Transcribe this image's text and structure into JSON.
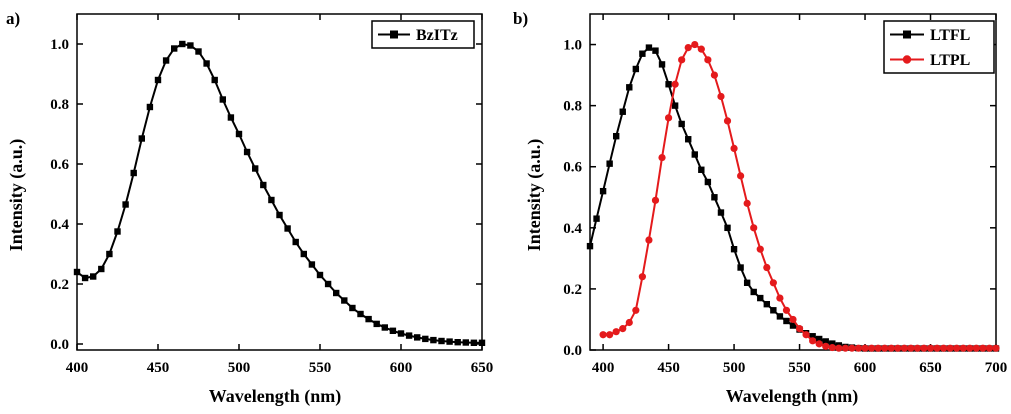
{
  "chart_data": [
    {
      "panel_label": "a)",
      "type": "line",
      "xlabel": "Wavelength (nm)",
      "ylabel": "Intensity (a.u.)",
      "xlim": [
        400,
        650
      ],
      "ylim": [
        -0.02,
        1.1
      ],
      "xticks": [
        400,
        450,
        500,
        550,
        600,
        650
      ],
      "yticks": [
        0.0,
        0.2,
        0.4,
        0.6,
        0.8,
        1.0
      ],
      "xtick_labels": [
        "400",
        "450",
        "500",
        "550",
        "600",
        "650"
      ],
      "ytick_labels": [
        "0.0",
        "0.2",
        "0.4",
        "0.6",
        "0.8",
        "1.0"
      ],
      "legend_position": "top-right",
      "grid": false,
      "series": [
        {
          "name": "BzITz",
          "color": "#000000",
          "marker": "square",
          "x": [
            400,
            405,
            410,
            415,
            420,
            425,
            430,
            435,
            440,
            445,
            450,
            455,
            460,
            465,
            470,
            475,
            480,
            485,
            490,
            495,
            500,
            505,
            510,
            515,
            520,
            525,
            530,
            535,
            540,
            545,
            550,
            555,
            560,
            565,
            570,
            575,
            580,
            585,
            590,
            595,
            600,
            605,
            610,
            615,
            620,
            625,
            630,
            635,
            640,
            645,
            650
          ],
          "y": [
            0.24,
            0.22,
            0.225,
            0.25,
            0.3,
            0.375,
            0.465,
            0.57,
            0.685,
            0.79,
            0.88,
            0.945,
            0.985,
            1.0,
            0.995,
            0.975,
            0.935,
            0.88,
            0.815,
            0.755,
            0.7,
            0.64,
            0.585,
            0.53,
            0.48,
            0.43,
            0.385,
            0.34,
            0.3,
            0.265,
            0.23,
            0.2,
            0.17,
            0.145,
            0.12,
            0.1,
            0.083,
            0.067,
            0.055,
            0.044,
            0.035,
            0.028,
            0.022,
            0.017,
            0.013,
            0.01,
            0.008,
            0.006,
            0.005,
            0.004,
            0.004
          ]
        }
      ]
    },
    {
      "panel_label": "b)",
      "type": "line",
      "xlabel": "Wavelength (nm)",
      "ylabel": "Intensity (a.u.)",
      "xlim": [
        390,
        700
      ],
      "ylim": [
        0.0,
        1.1
      ],
      "xticks": [
        400,
        450,
        500,
        550,
        600,
        650,
        700
      ],
      "yticks": [
        0.0,
        0.2,
        0.4,
        0.6,
        0.8,
        1.0
      ],
      "xtick_labels": [
        "400",
        "450",
        "500",
        "550",
        "600",
        "650",
        "700"
      ],
      "ytick_labels": [
        "0.0",
        "0.2",
        "0.4",
        "0.6",
        "0.8",
        "1.0"
      ],
      "legend_position": "top-right",
      "grid": false,
      "series": [
        {
          "name": "LTFL",
          "color": "#000000",
          "marker": "square",
          "x": [
            390,
            395,
            400,
            405,
            410,
            415,
            420,
            425,
            430,
            435,
            440,
            445,
            450,
            455,
            460,
            465,
            470,
            475,
            480,
            485,
            490,
            495,
            500,
            505,
            510,
            515,
            520,
            525,
            530,
            535,
            540,
            545,
            550,
            555,
            560,
            565,
            570,
            575,
            580,
            585,
            590,
            595,
            600,
            605,
            610,
            615,
            620,
            625,
            630,
            635,
            640,
            645,
            650,
            655,
            660,
            665,
            670,
            675,
            680,
            685,
            690,
            695,
            700
          ],
          "y": [
            0.34,
            0.43,
            0.52,
            0.61,
            0.7,
            0.78,
            0.86,
            0.92,
            0.97,
            0.99,
            0.98,
            0.935,
            0.87,
            0.8,
            0.74,
            0.69,
            0.64,
            0.59,
            0.55,
            0.5,
            0.45,
            0.4,
            0.33,
            0.27,
            0.22,
            0.19,
            0.17,
            0.15,
            0.13,
            0.11,
            0.095,
            0.08,
            0.067,
            0.055,
            0.045,
            0.036,
            0.028,
            0.021,
            0.015,
            0.01,
            0.008,
            0.006,
            0.005,
            0.005,
            0.005,
            0.005,
            0.005,
            0.005,
            0.005,
            0.005,
            0.005,
            0.005,
            0.005,
            0.005,
            0.005,
            0.005,
            0.005,
            0.005,
            0.005,
            0.005,
            0.005,
            0.005,
            0.005
          ]
        },
        {
          "name": "LTPL",
          "color": "#e41a1c",
          "marker": "circle",
          "x": [
            400,
            405,
            410,
            415,
            420,
            425,
            430,
            435,
            440,
            445,
            450,
            455,
            460,
            465,
            470,
            475,
            480,
            485,
            490,
            495,
            500,
            505,
            510,
            515,
            520,
            525,
            530,
            535,
            540,
            545,
            550,
            555,
            560,
            565,
            570,
            575,
            580,
            585,
            590,
            595,
            600,
            605,
            610,
            615,
            620,
            625,
            630,
            635,
            640,
            645,
            650,
            655,
            660,
            665,
            670,
            675,
            680,
            685,
            690,
            695,
            700
          ],
          "y": [
            0.05,
            0.05,
            0.06,
            0.07,
            0.09,
            0.13,
            0.24,
            0.36,
            0.49,
            0.63,
            0.76,
            0.87,
            0.95,
            0.99,
            1.0,
            0.985,
            0.95,
            0.9,
            0.83,
            0.75,
            0.66,
            0.57,
            0.48,
            0.4,
            0.33,
            0.27,
            0.22,
            0.17,
            0.13,
            0.1,
            0.07,
            0.05,
            0.03,
            0.02,
            0.012,
            0.008,
            0.006,
            0.006,
            0.006,
            0.006,
            0.006,
            0.006,
            0.006,
            0.006,
            0.006,
            0.006,
            0.006,
            0.006,
            0.006,
            0.006,
            0.006,
            0.006,
            0.006,
            0.006,
            0.006,
            0.006,
            0.006,
            0.006,
            0.006,
            0.006,
            0.006
          ]
        }
      ]
    }
  ]
}
